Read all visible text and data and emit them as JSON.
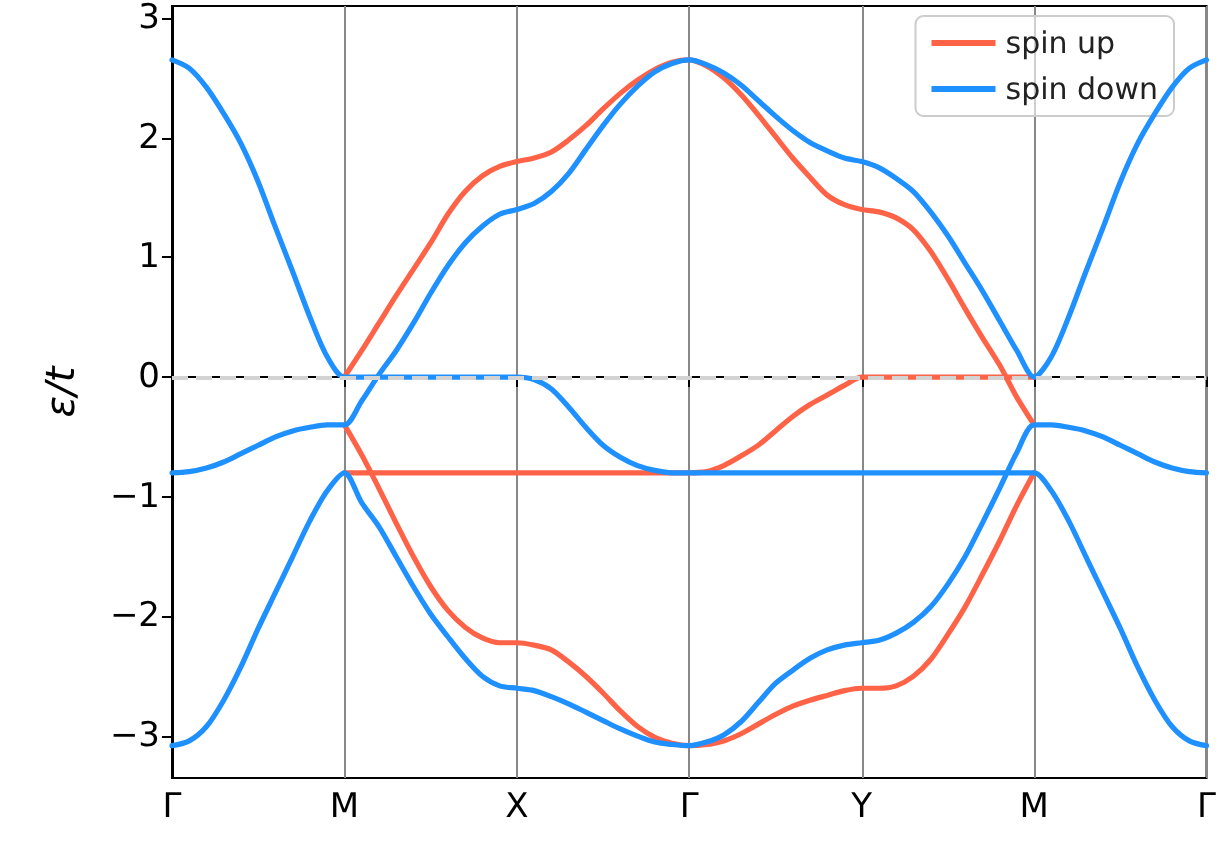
{
  "chart_data": {
    "type": "line",
    "ylabel": "ε/t",
    "categories": [
      "Γ",
      null,
      null,
      null,
      null,
      null,
      null,
      null,
      null,
      null,
      "M",
      null,
      null,
      null,
      null,
      null,
      null,
      null,
      null,
      null,
      "X",
      null,
      null,
      null,
      null,
      null,
      null,
      null,
      null,
      null,
      "Γ",
      null,
      null,
      null,
      null,
      null,
      null,
      null,
      null,
      null,
      "Y",
      null,
      null,
      null,
      null,
      null,
      null,
      null,
      null,
      null,
      "M",
      null,
      null,
      null,
      null,
      null,
      null,
      null,
      null,
      null,
      "Γ"
    ],
    "ylim": [
      -3.35,
      3.1
    ],
    "yticks": [
      -3,
      -2,
      -1,
      0,
      1,
      2,
      3
    ],
    "grid": "x",
    "legend": "top right",
    "line_style": "solid",
    "marker": "none",
    "ref_lines": [
      {
        "axis": "y",
        "value": 0,
        "color": "#d3d3d3",
        "line_style": "dashed"
      }
    ],
    "series": [
      {
        "name": "spin up",
        "color": "#ff6347",
        "values": [
          null,
          null,
          null,
          null,
          null,
          null,
          null,
          null,
          null,
          null,
          0,
          0.22,
          0.45,
          0.68,
          0.9,
          1.12,
          1.36,
          1.55,
          1.68,
          1.76,
          1.8,
          1.83,
          1.88,
          1.98,
          2.1,
          2.24,
          2.37,
          2.48,
          2.57,
          2.63,
          2.65,
          2.6,
          2.5,
          2.36,
          2.19,
          2.01,
          1.83,
          1.67,
          1.52,
          1.44,
          1.4,
          1.38,
          1.33,
          1.23,
          1.05,
          0.82,
          0.57,
          0.33,
          0.1,
          -0.17,
          -0.4,
          null,
          null,
          null,
          null,
          null,
          null,
          null,
          null,
          null,
          null
        ]
      },
      {
        "color": "#ff6347",
        "values": [
          null,
          null,
          null,
          null,
          null,
          null,
          null,
          null,
          null,
          null,
          -0.4,
          -0.65,
          -0.93,
          -1.22,
          -1.5,
          -1.75,
          -1.95,
          -2.09,
          -2.18,
          -2.22,
          -2.22,
          -2.24,
          -2.28,
          -2.38,
          -2.5,
          -2.64,
          -2.79,
          -2.92,
          -3.01,
          -3.06,
          -3.08,
          -3.07,
          -3.04,
          -2.98,
          -2.9,
          -2.82,
          -2.75,
          -2.7,
          -2.66,
          -2.62,
          -2.6,
          -2.6,
          -2.58,
          -2.5,
          -2.36,
          -2.15,
          -1.92,
          -1.65,
          -1.37,
          -1.07,
          -0.8,
          null,
          null,
          null,
          null,
          null,
          null,
          null,
          null,
          null,
          null
        ]
      },
      {
        "color": "#ff6347",
        "values": [
          null,
          null,
          null,
          null,
          null,
          null,
          null,
          null,
          null,
          null,
          -0.8,
          -0.8,
          -0.8,
          -0.8,
          -0.8,
          -0.8,
          -0.8,
          -0.8,
          -0.8,
          -0.8,
          -0.8,
          -0.8,
          -0.8,
          -0.8,
          -0.8,
          -0.8,
          -0.8,
          -0.8,
          -0.8,
          -0.8,
          -0.8,
          -0.79,
          -0.74,
          -0.66,
          -0.57,
          -0.45,
          -0.33,
          -0.23,
          -0.15,
          -0.07,
          0,
          0,
          0,
          0,
          0,
          0,
          0,
          0,
          0,
          0,
          0,
          null,
          null,
          null,
          null,
          null,
          null,
          null,
          null,
          null,
          null
        ]
      },
      {
        "name": "spin down",
        "color": "#1e90ff",
        "values": [
          2.65,
          2.58,
          2.42,
          2.2,
          1.95,
          1.63,
          1.25,
          0.88,
          0.5,
          0.17,
          0,
          0,
          0,
          0,
          0,
          0,
          0,
          0,
          0,
          0,
          0,
          -0.02,
          -0.1,
          -0.25,
          -0.42,
          -0.57,
          -0.67,
          -0.74,
          -0.78,
          -0.8,
          -0.8,
          -0.8,
          -0.8,
          -0.8,
          -0.8,
          -0.8,
          -0.8,
          -0.8,
          -0.8,
          -0.8,
          -0.8,
          -0.8,
          -0.8,
          -0.8,
          -0.8,
          -0.8,
          -0.8,
          -0.8,
          -0.8,
          -0.8,
          -0.8,
          -0.95,
          -1.2,
          -1.5,
          -1.8,
          -2.1,
          -2.42,
          -2.7,
          -2.92,
          -3.04,
          -3.08
        ]
      },
      {
        "color": "#1e90ff",
        "values": [
          -0.8,
          -0.79,
          -0.76,
          -0.71,
          -0.64,
          -0.57,
          -0.5,
          -0.45,
          -0.42,
          -0.4,
          -0.4,
          -0.2,
          0.02,
          0.22,
          0.45,
          0.7,
          0.93,
          1.12,
          1.26,
          1.36,
          1.4,
          1.45,
          1.55,
          1.7,
          1.9,
          2.1,
          2.28,
          2.43,
          2.55,
          2.62,
          2.65,
          2.61,
          2.54,
          2.44,
          2.31,
          2.18,
          2.06,
          1.96,
          1.89,
          1.83,
          1.8,
          1.75,
          1.66,
          1.55,
          1.38,
          1.18,
          0.95,
          0.72,
          0.47,
          0.22,
          0,
          0.17,
          0.5,
          0.88,
          1.25,
          1.63,
          1.95,
          2.2,
          2.42,
          2.58,
          2.65
        ]
      },
      {
        "color": "#1e90ff",
        "values": [
          -3.08,
          -3.04,
          -2.92,
          -2.7,
          -2.42,
          -2.1,
          -1.8,
          -1.5,
          -1.2,
          -0.95,
          -0.8,
          -1.05,
          -1.25,
          -1.5,
          -1.75,
          -1.98,
          -2.17,
          -2.35,
          -2.5,
          -2.58,
          -2.6,
          -2.62,
          -2.67,
          -2.73,
          -2.8,
          -2.87,
          -2.94,
          -3.0,
          -3.05,
          -3.07,
          -3.08,
          -3.05,
          -2.99,
          -2.88,
          -2.72,
          -2.56,
          -2.45,
          -2.35,
          -2.28,
          -2.24,
          -2.22,
          -2.2,
          -2.14,
          -2.05,
          -1.92,
          -1.73,
          -1.5,
          -1.22,
          -0.93,
          -0.63,
          -0.4,
          -0.4,
          -0.42,
          -0.45,
          -0.5,
          -0.57,
          -0.64,
          -0.71,
          -0.76,
          -0.79,
          -0.8
        ]
      }
    ]
  }
}
